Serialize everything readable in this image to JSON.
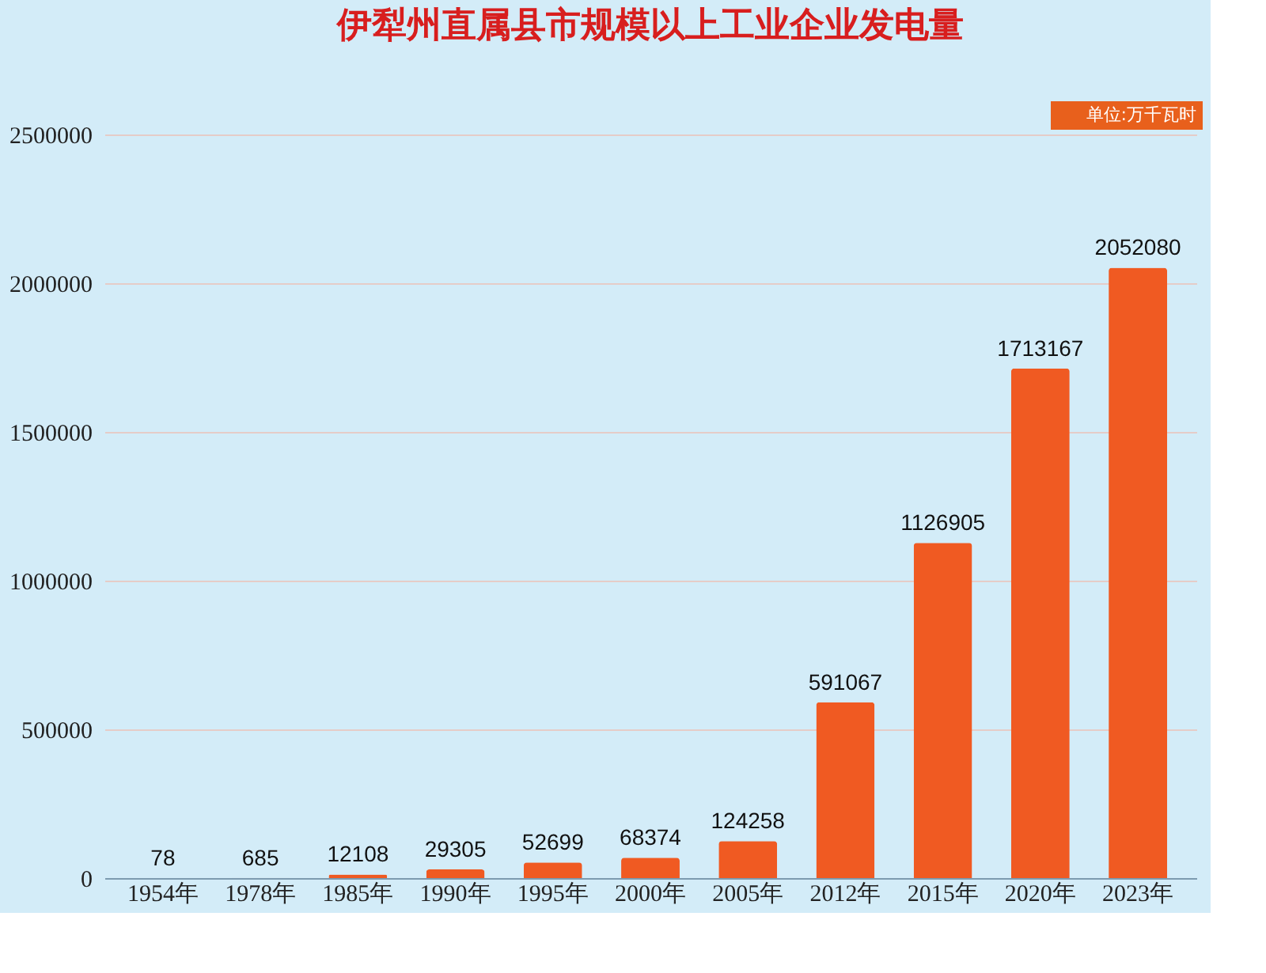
{
  "chart_data": {
    "type": "bar",
    "title": "伊犁州直属县市规模以上工业企业发电量",
    "annotations": [
      "单位:万千瓦时"
    ],
    "categories": [
      "1954年",
      "1978年",
      "1985年",
      "1990年",
      "1995年",
      "2000年",
      "2005年",
      "2012年",
      "2015年",
      "2020年",
      "2023年"
    ],
    "values": [
      78,
      685,
      12108,
      29305,
      52699,
      68374,
      124258,
      591067,
      1126905,
      1713167,
      2052080
    ],
    "color": "#f05a22",
    "ylim": [
      0,
      2500000
    ],
    "yticks": [
      0,
      500000,
      1000000,
      1500000,
      2000000,
      2500000
    ],
    "grid": "y",
    "data_labels": true
  }
}
